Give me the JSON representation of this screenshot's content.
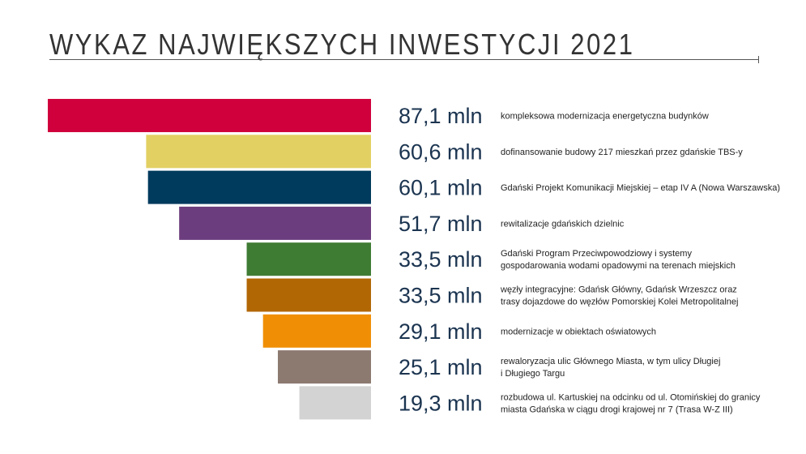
{
  "title": "WYKAZ NAJWIĘKSZYCH INWESTYCJI 2021",
  "chart_data": {
    "type": "bar",
    "orientation": "horizontal",
    "alignment": "right",
    "title": "WYKAZ NAJWIĘKSZYCH INWESTYCJI 2021",
    "unit": "mln",
    "categories": [
      "kompleksowa modernizacja energetyczna budynków",
      "dofinansowanie budowy 217 mieszkań przez gdańskie TBS-y",
      "Gdański Projekt Komunikacji Miejskiej – etap IV A (Nowa Warszawska)",
      "rewitalizacje gdańskich dzielnic",
      "Gdański Program Przeciwpowodziowy i systemy gospodarowania wodami opadowymi na terenach miejskich",
      "węzły integracyjne: Gdańsk Główny, Gdańsk Wrzeszcz oraz trasy dojazdowe do węzłów Pomorskiej Kolei Metropolitalnej",
      "modernizacje w obiektach oświatowych",
      "rewaloryzacja ulic Głównego Miasta, w tym ulicy Długiej i Długiego Targu",
      "rozbudowa ul. Kartuskiej na odcinku od ul. Otomińskiej do granicy miasta Gdańska w ciągu drogi krajowej nr 7 (Trasa W-Z III)"
    ],
    "description_lines": [
      [
        "kompleksowa modernizacja energetyczna budynków"
      ],
      [
        "dofinansowanie budowy 217 mieszkań przez gdańskie TBS-y"
      ],
      [
        "Gdański Projekt Komunikacji Miejskiej – etap IV A (Nowa Warszawska)"
      ],
      [
        "rewitalizacje gdańskich dzielnic"
      ],
      [
        "Gdański Program Przeciwpowodziowy i systemy",
        "gospodarowania wodami opadowymi na terenach miejskich"
      ],
      [
        "węzły integracyjne: Gdańsk Główny, Gdańsk Wrzeszcz oraz",
        "trasy dojazdowe do węzłów Pomorskiej Kolei Metropolitalnej"
      ],
      [
        "modernizacje w obiektach oświatowych"
      ],
      [
        "rewaloryzacja ulic Głównego Miasta, w tym ulicy Długiej",
        "i Długiego Targu"
      ],
      [
        "rozbudowa ul. Kartuskiej na odcinku od ul. Otomińskiej do granicy",
        "miasta Gdańska w ciągu drogi krajowej nr 7 (Trasa W-Z III)"
      ]
    ],
    "values": [
      87.1,
      60.6,
      60.1,
      51.7,
      33.5,
      33.5,
      29.1,
      25.1,
      19.3
    ],
    "value_labels": [
      "87,1 mln",
      "60,6 mln",
      "60,1 mln",
      "51,7 mln",
      "33,5 mln",
      "33,5 mln",
      "29,1 mln",
      "25,1 mln",
      "19,3 mln"
    ],
    "colors": [
      "#d0003c",
      "#e3d063",
      "#003a5d",
      "#6c3d7e",
      "#3f7c33",
      "#b26705",
      "#f08f06",
      "#8c7970",
      "#d3d3d3"
    ],
    "grid": false,
    "legend": "none"
  }
}
